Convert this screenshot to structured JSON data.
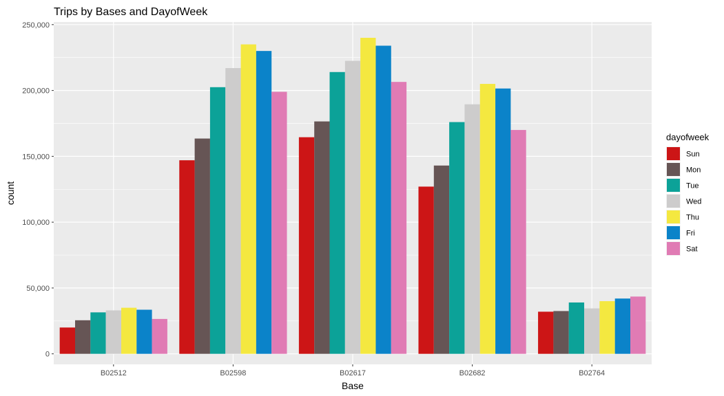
{
  "chart_data": {
    "type": "bar",
    "title": "Trips by Bases and DayofWeek",
    "xlabel": "Base",
    "ylabel": "count",
    "categories": [
      "B02512",
      "B02598",
      "B02617",
      "B02682",
      "B02764"
    ],
    "ylim": [
      -8000,
      252000
    ],
    "yticks": [
      0,
      50000,
      100000,
      150000,
      200000,
      250000
    ],
    "ytick_labels": [
      "0",
      "50,000",
      "100,000",
      "150,000",
      "200,000",
      "250,000"
    ],
    "grid": true,
    "legend": {
      "title": "dayofweek",
      "position": "right"
    },
    "series": [
      {
        "name": "Sun",
        "color": "#cc1516",
        "values": [
          20000,
          147000,
          164500,
          127000,
          32000
        ]
      },
      {
        "name": "Mon",
        "color": "#665555",
        "values": [
          25500,
          163500,
          176500,
          143000,
          32500
        ]
      },
      {
        "name": "Tue",
        "color": "#0ca298",
        "values": [
          31500,
          202500,
          214000,
          176000,
          39000
        ]
      },
      {
        "name": "Wed",
        "color": "#cdcccc",
        "values": [
          33000,
          217000,
          222500,
          189500,
          34500
        ]
      },
      {
        "name": "Thu",
        "color": "#f4e840",
        "values": [
          35000,
          235000,
          240000,
          205000,
          40000
        ]
      },
      {
        "name": "Fri",
        "color": "#0b83c9",
        "values": [
          33500,
          230000,
          234000,
          201500,
          42000
        ]
      },
      {
        "name": "Sat",
        "color": "#e07bb4",
        "values": [
          26500,
          199000,
          206500,
          170000,
          43500
        ]
      }
    ]
  }
}
